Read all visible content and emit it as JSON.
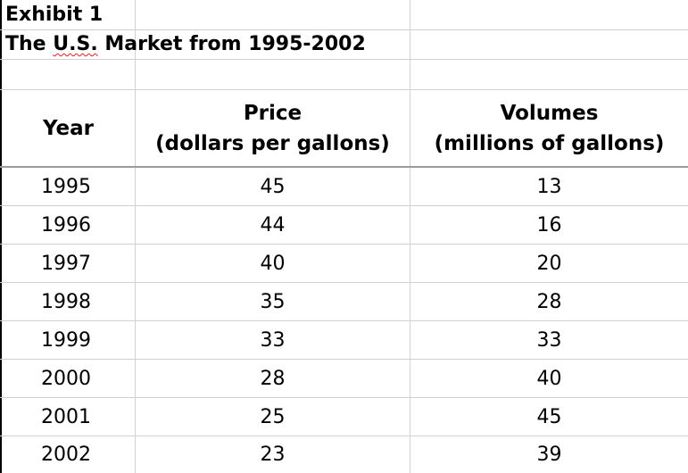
{
  "exhibit": {
    "label": "Exhibit 1",
    "title_prefix": "The ",
    "title_flagged": "U.S.",
    "title_suffix": " Market from 1995-2002"
  },
  "table": {
    "headers": {
      "year": "Year",
      "price_line1": "Price",
      "price_line2": "(dollars per gallons)",
      "volume_line1": "Volumes",
      "volume_line2": "(millions of gallons)"
    },
    "rows": [
      {
        "year": "1995",
        "price": "45",
        "volume": "13"
      },
      {
        "year": "1996",
        "price": "44",
        "volume": "16"
      },
      {
        "year": "1997",
        "price": "40",
        "volume": "20"
      },
      {
        "year": "1998",
        "price": "35",
        "volume": "28"
      },
      {
        "year": "1999",
        "price": "33",
        "volume": "33"
      },
      {
        "year": "2000",
        "price": "28",
        "volume": "40"
      },
      {
        "year": "2001",
        "price": "25",
        "volume": "45"
      },
      {
        "year": "2002",
        "price": "23",
        "volume": "39"
      }
    ]
  },
  "colors": {
    "gridline": "#d0d0d0",
    "border": "#000000",
    "spellcheck_underline": "#e02020"
  }
}
